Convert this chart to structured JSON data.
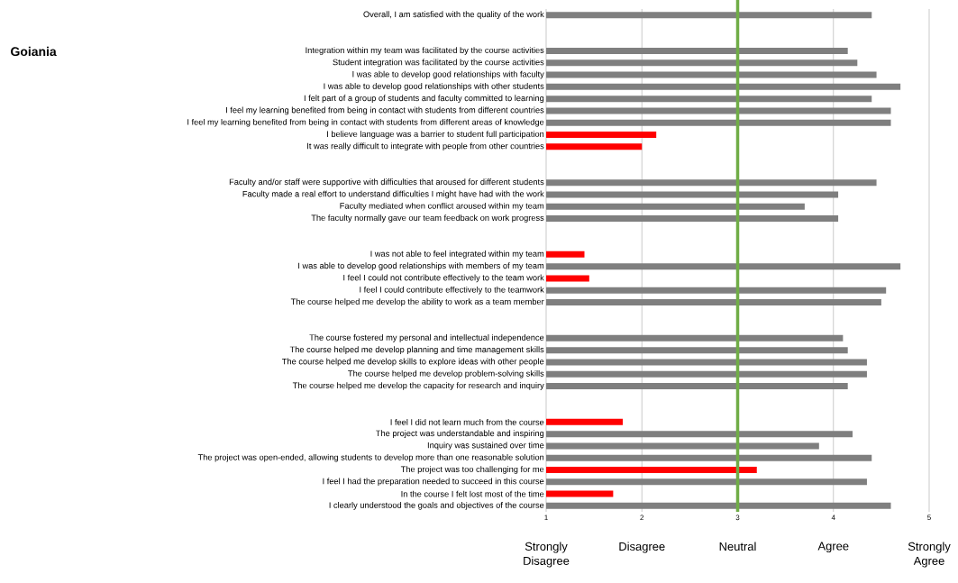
{
  "chart_data": {
    "type": "bar",
    "orientation": "horizontal",
    "title": "Goiania",
    "categories": [
      "Overall, I am satisfied with the quality of the work",
      null,
      null,
      "Integration within my team was facilitated by the course activities",
      "Student integration was facilitated by the course activities",
      "I was able to develop good relationships with faculty",
      "I was able to develop good relationships with other students",
      "I felt part of a group of students and faculty committed to learning",
      "I feel my learning benefited from being in contact with students from different countries",
      "I feel my learning benefited from being in contact with students from different areas of knowledge",
      "I believe language was a barrier to student full participation",
      "It was really difficult to integrate with people from other countries",
      null,
      null,
      "Faculty and/or staff were supportive with difficulties that aroused for different students",
      "Faculty made a real effort to understand difficulties I might have had with the work",
      "Faculty mediated when conflict aroused within my team",
      "The faculty normally gave our team feedback on work progress",
      null,
      null,
      "I was not able to feel integrated within my team",
      "I was able to develop good relationships with members of my team",
      "I feel I could not contribute effectively to the team work",
      "I feel I could contribute effectively to the teamwork",
      "The course helped me develop the ability to work as a team member",
      null,
      null,
      "The course fostered my personal and intellectual independence",
      "The course helped me develop planning and time management skills",
      "The course helped me develop skills to explore ideas with other people",
      "The course helped me develop problem-solving skills",
      "The course helped me develop the capacity for research and inquiry",
      null,
      null,
      "I feel I did not learn much from the course",
      "The project was understandable and inspiring",
      "Inquiry was sustained over time",
      "The project was open-ended, allowing students to develop more than one reasonable solution",
      "The project was too challenging for me",
      "I feel I had the preparation needed to succeed in this course",
      "In the course I felt lost most of the time",
      "I clearly understood the goals and objectives of the course"
    ],
    "values": [
      4.4,
      null,
      null,
      4.15,
      4.25,
      4.45,
      4.7,
      4.4,
      4.6,
      4.6,
      2.15,
      2.0,
      null,
      null,
      4.45,
      4.05,
      3.7,
      4.05,
      null,
      null,
      1.4,
      4.7,
      1.45,
      4.55,
      4.5,
      null,
      null,
      4.1,
      4.15,
      4.35,
      4.35,
      4.15,
      null,
      null,
      1.8,
      4.2,
      3.85,
      4.4,
      3.2,
      4.35,
      1.7,
      4.6
    ],
    "colors": [
      "#7f7f7f",
      null,
      null,
      "#7f7f7f",
      "#7f7f7f",
      "#7f7f7f",
      "#7f7f7f",
      "#7f7f7f",
      "#7f7f7f",
      "#7f7f7f",
      "#ff0000",
      "#ff0000",
      null,
      null,
      "#7f7f7f",
      "#7f7f7f",
      "#7f7f7f",
      "#7f7f7f",
      null,
      null,
      "#ff0000",
      "#7f7f7f",
      "#ff0000",
      "#7f7f7f",
      "#7f7f7f",
      null,
      null,
      "#7f7f7f",
      "#7f7f7f",
      "#7f7f7f",
      "#7f7f7f",
      "#7f7f7f",
      null,
      null,
      "#ff0000",
      "#7f7f7f",
      "#7f7f7f",
      "#7f7f7f",
      "#ff0000",
      "#7f7f7f",
      "#ff0000",
      "#7f7f7f"
    ],
    "xlim": [
      1,
      5
    ],
    "xticks": [
      1,
      2,
      3,
      4,
      5
    ],
    "grid": "x",
    "ref_lines": [
      {
        "axis": "x",
        "value": 3,
        "color": "#70ad47"
      }
    ],
    "annotations": [
      "Strongly Disagree",
      "Disagree",
      "Neutral",
      "Agree",
      "Strongly Agree"
    ]
  }
}
